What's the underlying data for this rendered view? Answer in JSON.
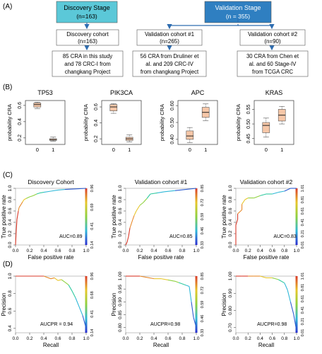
{
  "panel_labels": {
    "a": "(A)",
    "b": "(B)",
    "c": "(C)",
    "d": "(D)"
  },
  "flow": {
    "discovery_stage": {
      "title": "Discovery Stage",
      "n": "(n=163)"
    },
    "validation_stage": {
      "title": "Validation Stage",
      "n": "(n = 355)"
    },
    "discovery_cohort": {
      "title": "Discovery cohort",
      "n": "(n=163)"
    },
    "validation1": {
      "title": "Validation cohort #1",
      "n": "(n=265)"
    },
    "validation2": {
      "title": "Validation cohort #2",
      "n": "(n=90)"
    },
    "detail1": [
      "85 CRA in this study",
      "and 78 CRC-I from",
      "changkang Project"
    ],
    "detail2": [
      "56 CRA from Druliner et",
      "al. and 209 CRC-IV",
      "from changkang Project"
    ],
    "detail3": [
      "30 CRA from Chen et",
      "al. and 60 Stage-IV",
      "from TCGA CRC"
    ]
  },
  "colors": {
    "discovery_box": "#5bc8d8",
    "validation_box": "#2f7fc1",
    "box_fill": "#f6c7a8",
    "grey_box": "#bfbfbf",
    "arrow": "#2f6db0"
  },
  "chart_data": [
    {
      "type": "box",
      "title": "TP53",
      "ylabel": "probability CRA",
      "categories": [
        "0",
        "1"
      ],
      "yticks": [
        "0.2",
        "0.4",
        "0.6"
      ],
      "ylim": [
        0.12,
        0.66
      ],
      "boxes": [
        {
          "q1": 0.58,
          "median": 0.61,
          "q3": 0.63,
          "min": 0.56,
          "max": 0.64
        },
        {
          "q1": 0.17,
          "median": 0.18,
          "q3": 0.19,
          "min": 0.16,
          "max": 0.21
        }
      ]
    },
    {
      "type": "box",
      "title": "PIK3CA",
      "ylabel": "probability CRA",
      "categories": [
        "0",
        "1"
      ],
      "yticks": [
        "0.2",
        "0.4",
        "0.6"
      ],
      "ylim": [
        0.13,
        0.68
      ],
      "boxes": [
        {
          "q1": 0.55,
          "median": 0.6,
          "q3": 0.63,
          "min": 0.52,
          "max": 0.64
        },
        {
          "q1": 0.18,
          "median": 0.2,
          "q3": 0.22,
          "min": 0.16,
          "max": 0.25
        }
      ]
    },
    {
      "type": "box",
      "title": "APC",
      "ylabel": "probability CRA",
      "categories": [
        "0",
        "1"
      ],
      "yticks": [
        "0.40",
        "0.50",
        "0.60"
      ],
      "ylim": [
        0.37,
        0.63
      ],
      "boxes": [
        {
          "q1": 0.4,
          "median": 0.42,
          "q3": 0.45,
          "min": 0.38,
          "max": 0.47
        },
        {
          "q1": 0.53,
          "median": 0.56,
          "q3": 0.59,
          "min": 0.51,
          "max": 0.61
        }
      ]
    },
    {
      "type": "box",
      "title": "KRAS",
      "ylabel": "probability CRA",
      "categories": [
        "0",
        "1"
      ],
      "yticks": [
        "0.45",
        "0.50",
        "0.55"
      ],
      "ylim": [
        0.43,
        0.58
      ],
      "boxes": [
        {
          "q1": 0.47,
          "median": 0.495,
          "q3": 0.505,
          "min": 0.455,
          "max": 0.52
        },
        {
          "q1": 0.51,
          "median": 0.53,
          "q3": 0.55,
          "min": 0.5,
          "max": 0.56
        }
      ]
    },
    {
      "type": "line",
      "title": "Discovery Cohort",
      "xlabel": "False positive rate",
      "ylabel": "True positive rate",
      "xticks": [
        "0.0",
        "0.2",
        "0.4",
        "0.6",
        "0.8",
        "1.0"
      ],
      "yticks": [
        "0.0",
        "0.2",
        "0.4",
        "0.6",
        "0.8",
        "1.0"
      ],
      "colorbar_ticks": [
        "0.14",
        "0.41",
        "0.69",
        "0.96"
      ],
      "annotation": "AUC=0.89",
      "x": [
        0,
        0.01,
        0.02,
        0.04,
        0.05,
        0.08,
        0.1,
        0.12,
        0.15,
        0.2,
        0.25,
        0.3,
        0.35,
        0.4,
        0.5,
        0.6,
        0.7,
        0.85,
        1.0
      ],
      "y": [
        0,
        0.25,
        0.45,
        0.6,
        0.66,
        0.72,
        0.76,
        0.8,
        0.82,
        0.85,
        0.87,
        0.9,
        0.92,
        0.93,
        0.95,
        0.97,
        0.98,
        0.99,
        1.0
      ]
    },
    {
      "type": "line",
      "title": "Validation cohort #1",
      "xlabel": "False positive rate",
      "ylabel": "True positive rate",
      "xticks": [
        "0.0",
        "0.2",
        "0.4",
        "0.6",
        "0.8",
        "1.0"
      ],
      "yticks": [
        "0.0",
        "0.2",
        "0.4",
        "0.6",
        "0.8",
        "1.0"
      ],
      "colorbar_ticks": [
        "0.33",
        "0.46",
        "0.59",
        "0.72",
        "0.85"
      ],
      "annotation": "AUC=0.85",
      "x": [
        0,
        0.02,
        0.04,
        0.06,
        0.1,
        0.12,
        0.15,
        0.2,
        0.25,
        0.3,
        0.35,
        0.45,
        0.55,
        0.7,
        0.85,
        1.0
      ],
      "y": [
        0,
        0.05,
        0.15,
        0.3,
        0.45,
        0.52,
        0.6,
        0.7,
        0.75,
        0.82,
        0.9,
        0.92,
        0.94,
        0.96,
        0.98,
        1.0
      ]
    },
    {
      "type": "line",
      "title": "Validation cohort #2",
      "xlabel": "False positive rate",
      "ylabel": "True positive rate",
      "xticks": [
        "0.0",
        "0.2",
        "0.4",
        "0.6",
        "0.8",
        "1.0"
      ],
      "yticks": [
        "0.0",
        "0.2",
        "0.4",
        "0.6",
        "0.8",
        "1.0"
      ],
      "colorbar_ticks": [
        "0.01",
        "0.21",
        "0.41",
        "0.61",
        "0.81",
        "1.01"
      ],
      "annotation": "AUC=0.83",
      "x": [
        0,
        0.0,
        0.03,
        0.03,
        0.1,
        0.1,
        0.15,
        0.2,
        0.3,
        0.4,
        0.5,
        0.6,
        0.7,
        0.8,
        0.9,
        1.0
      ],
      "y": [
        0,
        0.35,
        0.45,
        0.55,
        0.62,
        0.72,
        0.8,
        0.83,
        0.83,
        0.87,
        0.9,
        0.9,
        0.93,
        0.95,
        1.0,
        1.0
      ]
    },
    {
      "type": "line",
      "title": "",
      "xlabel": "Recall",
      "ylabel": "Precision",
      "xticks": [
        "0.0",
        "0.2",
        "0.4",
        "0.6",
        "0.8",
        "1.0"
      ],
      "yticks": [
        "0.4",
        "0.6",
        "0.8",
        "1.0"
      ],
      "ylim": [
        0.35,
        1.0
      ],
      "colorbar_ticks": [
        "0.14",
        "0.41",
        "0.68",
        "0.96"
      ],
      "annotation": "AUCPR = 0.94",
      "x": [
        0.0,
        0.2,
        0.4,
        0.5,
        0.55,
        0.6,
        0.65,
        0.7,
        0.75,
        0.8,
        0.85,
        0.9,
        0.95,
        1.0
      ],
      "y": [
        1.0,
        1.0,
        1.0,
        0.97,
        0.98,
        0.95,
        0.96,
        0.93,
        0.9,
        0.83,
        0.75,
        0.65,
        0.55,
        0.4
      ]
    },
    {
      "type": "line",
      "title": "",
      "xlabel": "Recall",
      "ylabel": "Precision",
      "xticks": [
        "0.0",
        "0.2",
        "0.4",
        "0.6",
        "0.8",
        "1.0"
      ],
      "yticks": [
        "0.80",
        "0.85",
        "0.90",
        "0.95",
        "1.00"
      ],
      "ylim": [
        0.78,
        1.0
      ],
      "colorbar_ticks": [
        "0.33",
        "0.46",
        "0.59",
        "0.72",
        "0.85"
      ],
      "annotation": "AUCPR=0.98",
      "x": [
        0.0,
        0.1,
        0.2,
        0.3,
        0.4,
        0.5,
        0.6,
        0.7,
        0.75,
        0.8,
        0.85,
        0.9,
        0.93,
        0.96,
        1.0
      ],
      "y": [
        1.0,
        1.0,
        1.0,
        0.995,
        0.99,
        0.99,
        0.985,
        0.98,
        0.975,
        0.97,
        0.965,
        0.96,
        0.9,
        0.84,
        0.8
      ]
    },
    {
      "type": "line",
      "title": "",
      "xlabel": "Recall",
      "ylabel": "Precision",
      "xticks": [
        "0.0",
        "0.2",
        "0.4",
        "0.6",
        "0.8",
        "1.0"
      ],
      "yticks": [
        "0.70",
        "0.80",
        "0.90",
        "1.00"
      ],
      "ylim": [
        0.67,
        1.0
      ],
      "colorbar_ticks": [
        "0.01",
        "0.21",
        "0.41",
        "0.61",
        "0.81",
        "1.01"
      ],
      "annotation": "AUCPR=0.98",
      "x": [
        0.0,
        0.1,
        0.2,
        0.3,
        0.4,
        0.5,
        0.6,
        0.65,
        0.7,
        0.75,
        0.8,
        0.85,
        0.9,
        0.95,
        1.0
      ],
      "y": [
        1.0,
        1.0,
        1.0,
        1.0,
        1.0,
        0.99,
        0.99,
        0.985,
        0.98,
        0.97,
        0.96,
        0.92,
        0.85,
        0.78,
        0.68
      ]
    }
  ]
}
